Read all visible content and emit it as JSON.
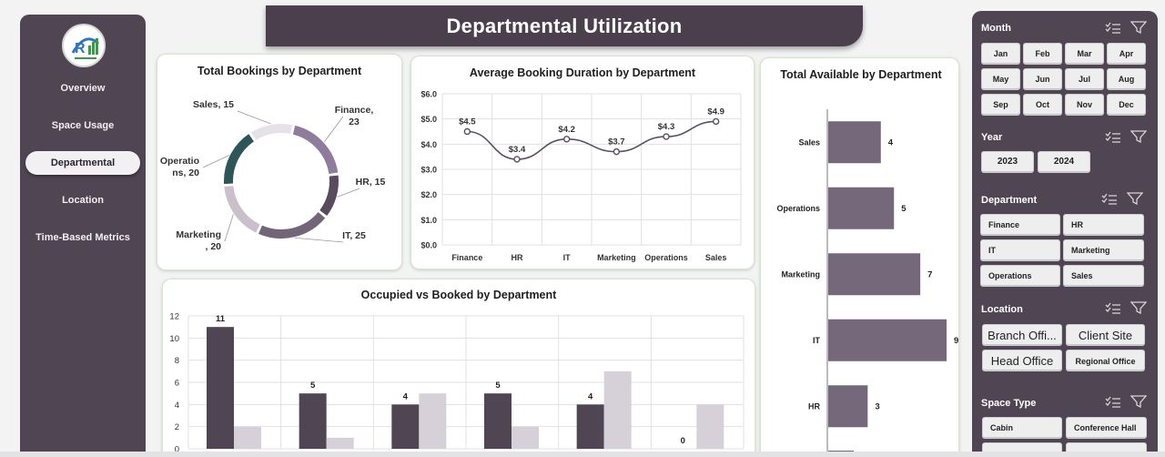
{
  "title": "Departmental Utilization",
  "nav": {
    "items": [
      "Overview",
      "Space Usage",
      "Departmental",
      "Location",
      "Time-Based Metrics"
    ],
    "active_index": 2
  },
  "colors": {
    "dark_purple": "#4f4553",
    "light_purple": "#d3ccd6",
    "mid_purple": "#8b7994",
    "teal": "#2e5558"
  },
  "chart_data": [
    {
      "type": "pie",
      "title": "Total Bookings by Department",
      "categories": [
        "Finance",
        "HR",
        "IT",
        "Marketing",
        "Operations",
        "Sales"
      ],
      "values": [
        23,
        15,
        25,
        20,
        20,
        15
      ],
      "labels": [
        "Finance,\n23",
        "HR, 15",
        "IT, 25",
        "Marketing\n, 20",
        "Operatio\nns, 20",
        "Sales, 15"
      ],
      "colors": [
        "#8f7b9c",
        "#584b5d",
        "#726577",
        "#c9c0cc",
        "#2e5558",
        "#e6e1e8"
      ]
    },
    {
      "type": "line",
      "title": "Average Booking Duration by Department",
      "categories": [
        "Finance",
        "HR",
        "IT",
        "Marketing",
        "Operations",
        "Sales"
      ],
      "values": [
        4.5,
        3.4,
        4.2,
        3.7,
        4.3,
        4.9
      ],
      "data_labels": [
        "$4.5",
        "$3.4",
        "$4.2",
        "$3.7",
        "$4.3",
        "$4.9"
      ],
      "yticks": [
        "$0.0",
        "$1.0",
        "$2.0",
        "$3.0",
        "$4.0",
        "$5.0",
        "$6.0"
      ],
      "ylim": [
        0,
        6
      ],
      "grid": true
    },
    {
      "type": "bar",
      "title": "Occupied vs Booked by Department",
      "series": [
        {
          "values": [
            11,
            5,
            4,
            5,
            4,
            0
          ],
          "labels": [
            "11",
            "5",
            "4",
            "5",
            "4",
            "0"
          ]
        },
        {
          "values": [
            2,
            1,
            5,
            2,
            7,
            4
          ]
        }
      ],
      "yticks": [
        "0",
        "2",
        "4",
        "6",
        "8",
        "10",
        "12"
      ],
      "ylim": [
        0,
        12
      ],
      "grid": true
    },
    {
      "type": "bar",
      "orientation": "horizontal",
      "title": "Total Available by Department",
      "categories": [
        "Sales",
        "Operations",
        "Marketing",
        "IT",
        "HR"
      ],
      "values": [
        4,
        5,
        7,
        9,
        3
      ],
      "labels": [
        "4",
        "5",
        "7",
        "9",
        "3"
      ]
    }
  ],
  "filters": {
    "month": {
      "title": "Month",
      "options": [
        "Jan",
        "Feb",
        "Mar",
        "Apr",
        "May",
        "Jun",
        "Jul",
        "Aug",
        "Sep",
        "Oct",
        "Nov",
        "Dec"
      ]
    },
    "year": {
      "title": "Year",
      "options": [
        "2023",
        "2024"
      ]
    },
    "department": {
      "title": "Department",
      "options": [
        "Finance",
        "HR",
        "IT",
        "Marketing",
        "Operations",
        "Sales"
      ]
    },
    "location": {
      "title": "Location",
      "options": [
        "Branch Offi...",
        "Client Site",
        "Head Office",
        "Regional Office"
      ]
    },
    "space_type": {
      "title": "Space Type",
      "options": [
        "Cabin",
        "Conference Hall"
      ]
    }
  }
}
